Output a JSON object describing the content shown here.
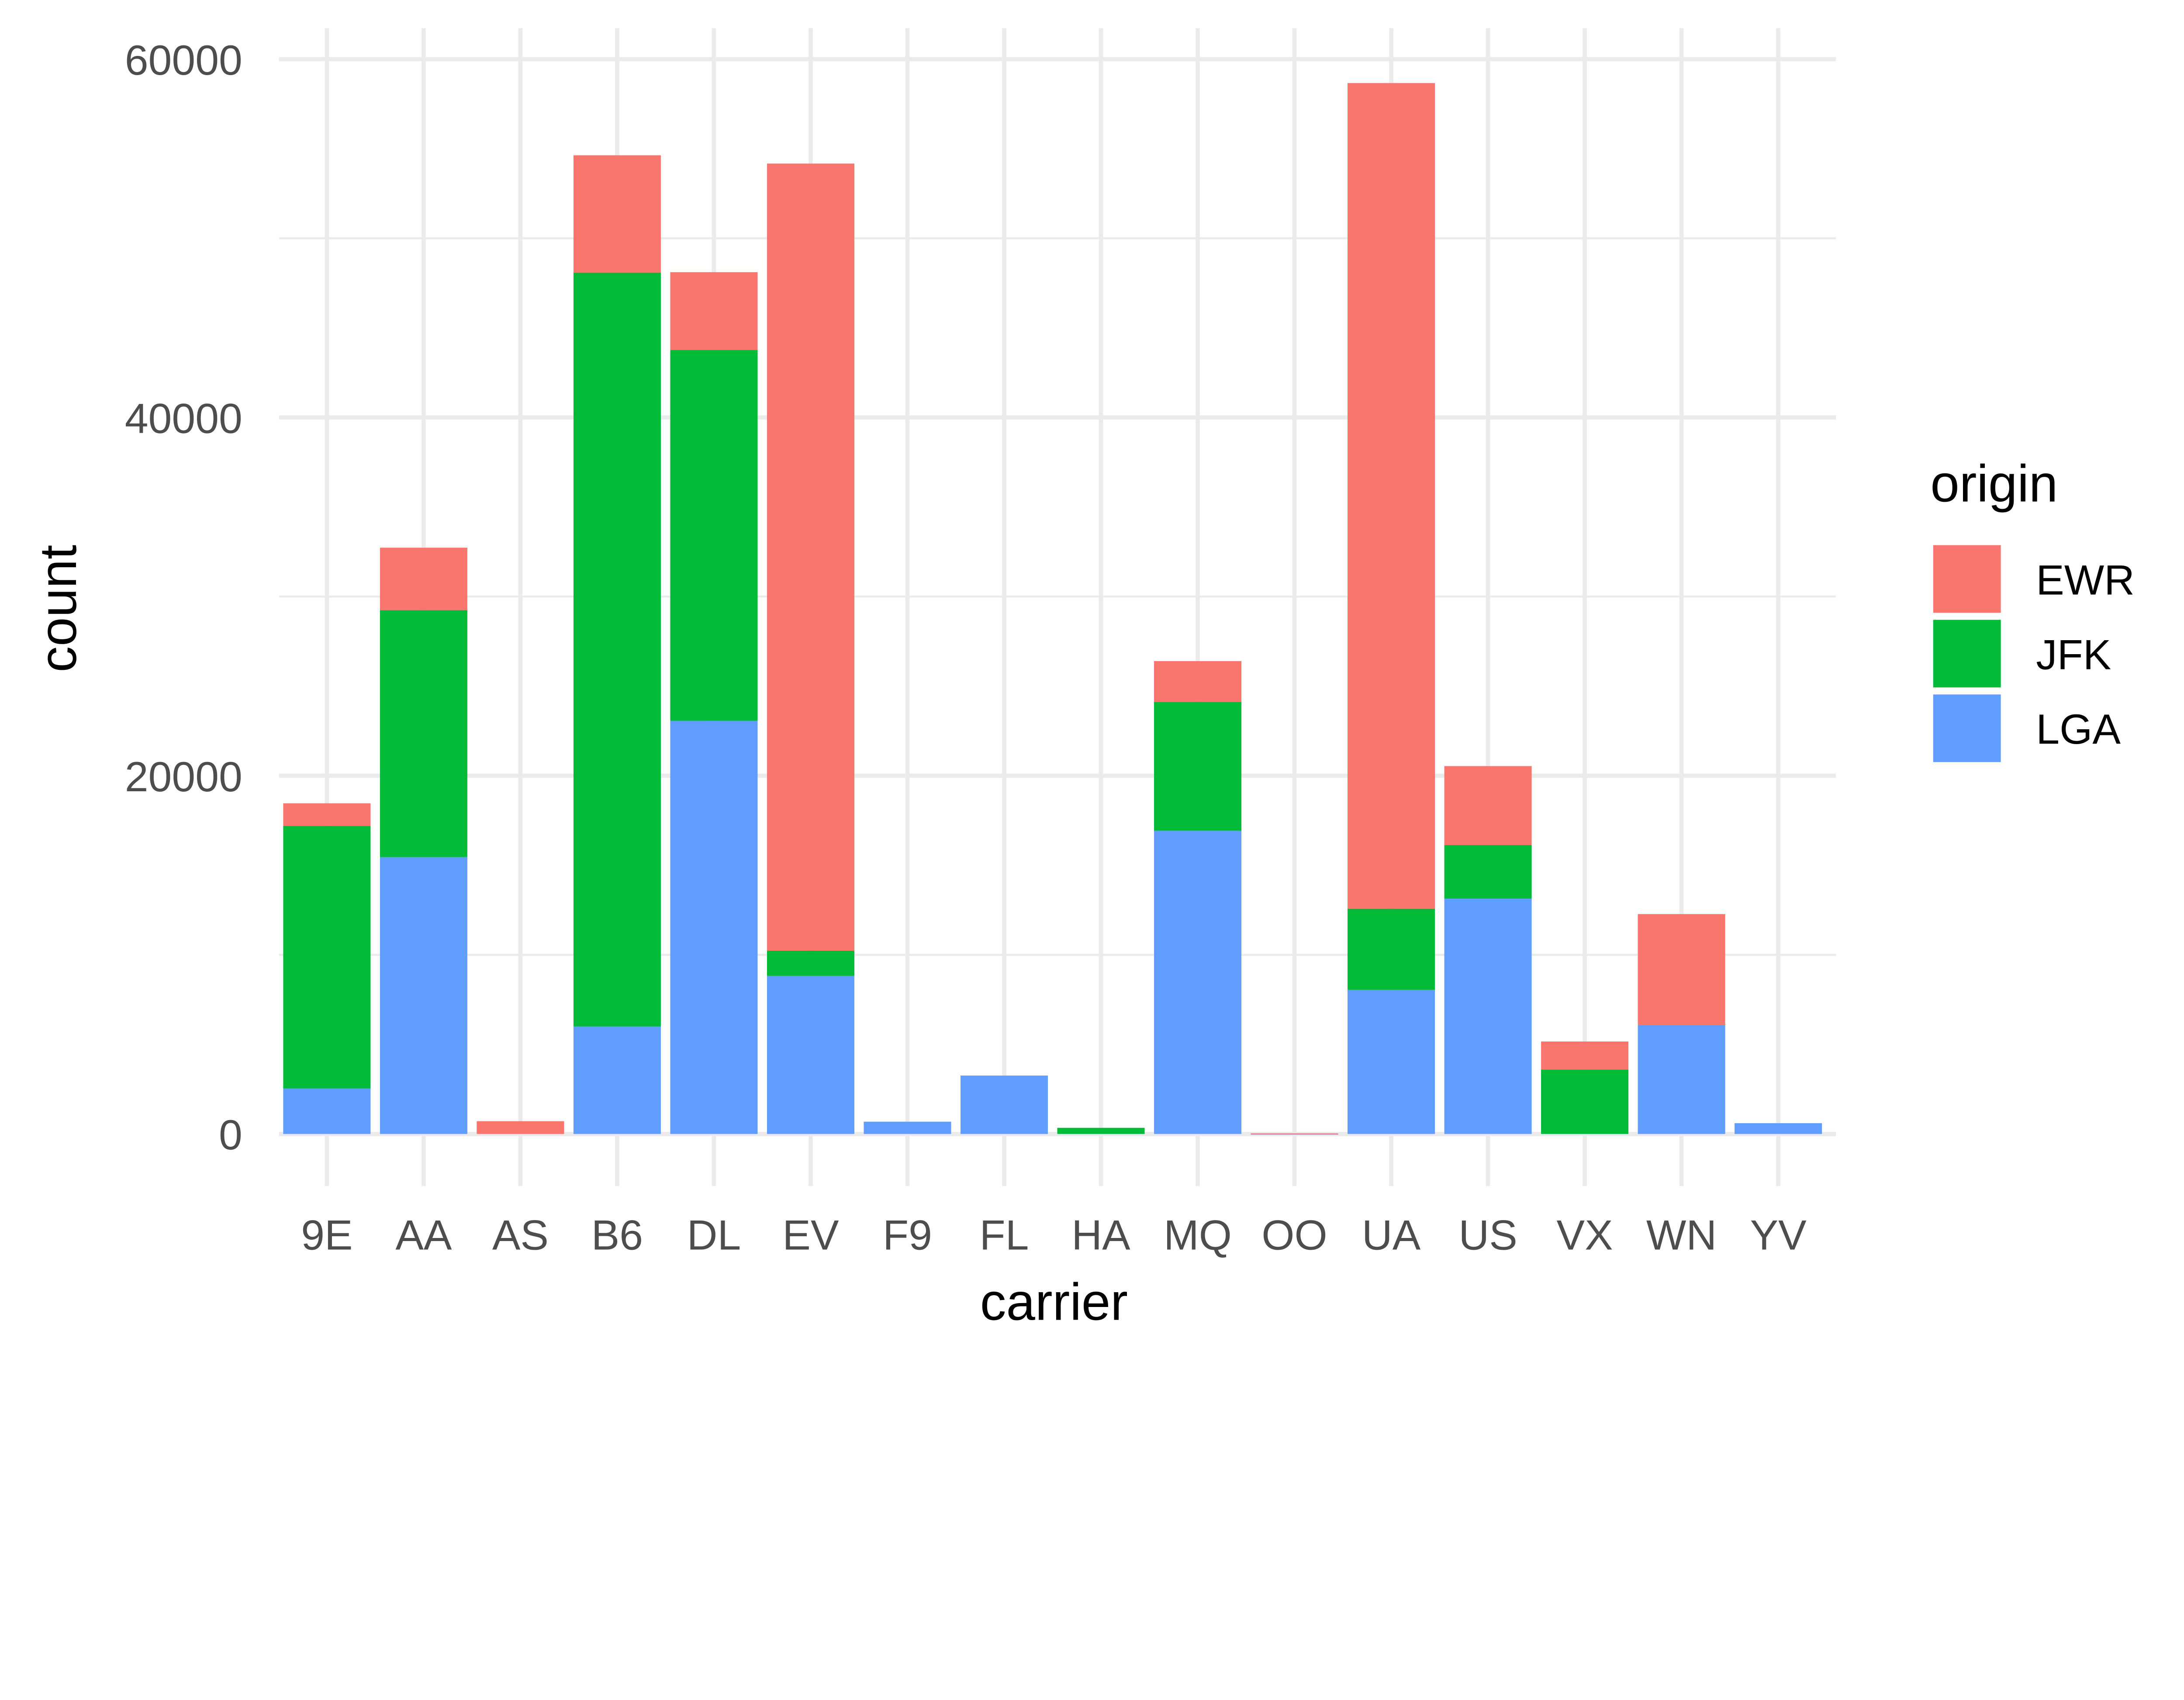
{
  "chart_data": {
    "type": "bar",
    "stacked": true,
    "title": "",
    "xlabel": "carrier",
    "ylabel": "count",
    "ylim": [
      0,
      60000
    ],
    "yticks": [
      0,
      20000,
      40000,
      60000
    ],
    "ytick_labels": [
      "0",
      "20000",
      "40000",
      "60000"
    ],
    "grid": true,
    "categories": [
      "9E",
      "AA",
      "AS",
      "B6",
      "DL",
      "EV",
      "F9",
      "FL",
      "HA",
      "MQ",
      "OO",
      "UA",
      "US",
      "VX",
      "WN",
      "YV"
    ],
    "series": [
      {
        "name": "LGA",
        "color": "#619CFF",
        "values": [
          2541,
          15459,
          0,
          6002,
          23067,
          8826,
          685,
          3260,
          0,
          16928,
          26,
          8044,
          13136,
          0,
          6087,
          601
        ]
      },
      {
        "name": "JFK",
        "color": "#00BA38",
        "values": [
          14651,
          13783,
          0,
          42076,
          20701,
          1408,
          0,
          0,
          342,
          7193,
          0,
          4534,
          2995,
          3596,
          0,
          0
        ]
      },
      {
        "name": "EWR",
        "color": "#F8766D",
        "values": [
          1268,
          3487,
          714,
          6557,
          4342,
          43939,
          0,
          0,
          0,
          2276,
          6,
          46087,
          4405,
          1566,
          6188,
          0
        ]
      }
    ],
    "legend": {
      "title": "origin",
      "placement": "right",
      "entries": [
        "EWR",
        "JFK",
        "LGA"
      ]
    }
  }
}
